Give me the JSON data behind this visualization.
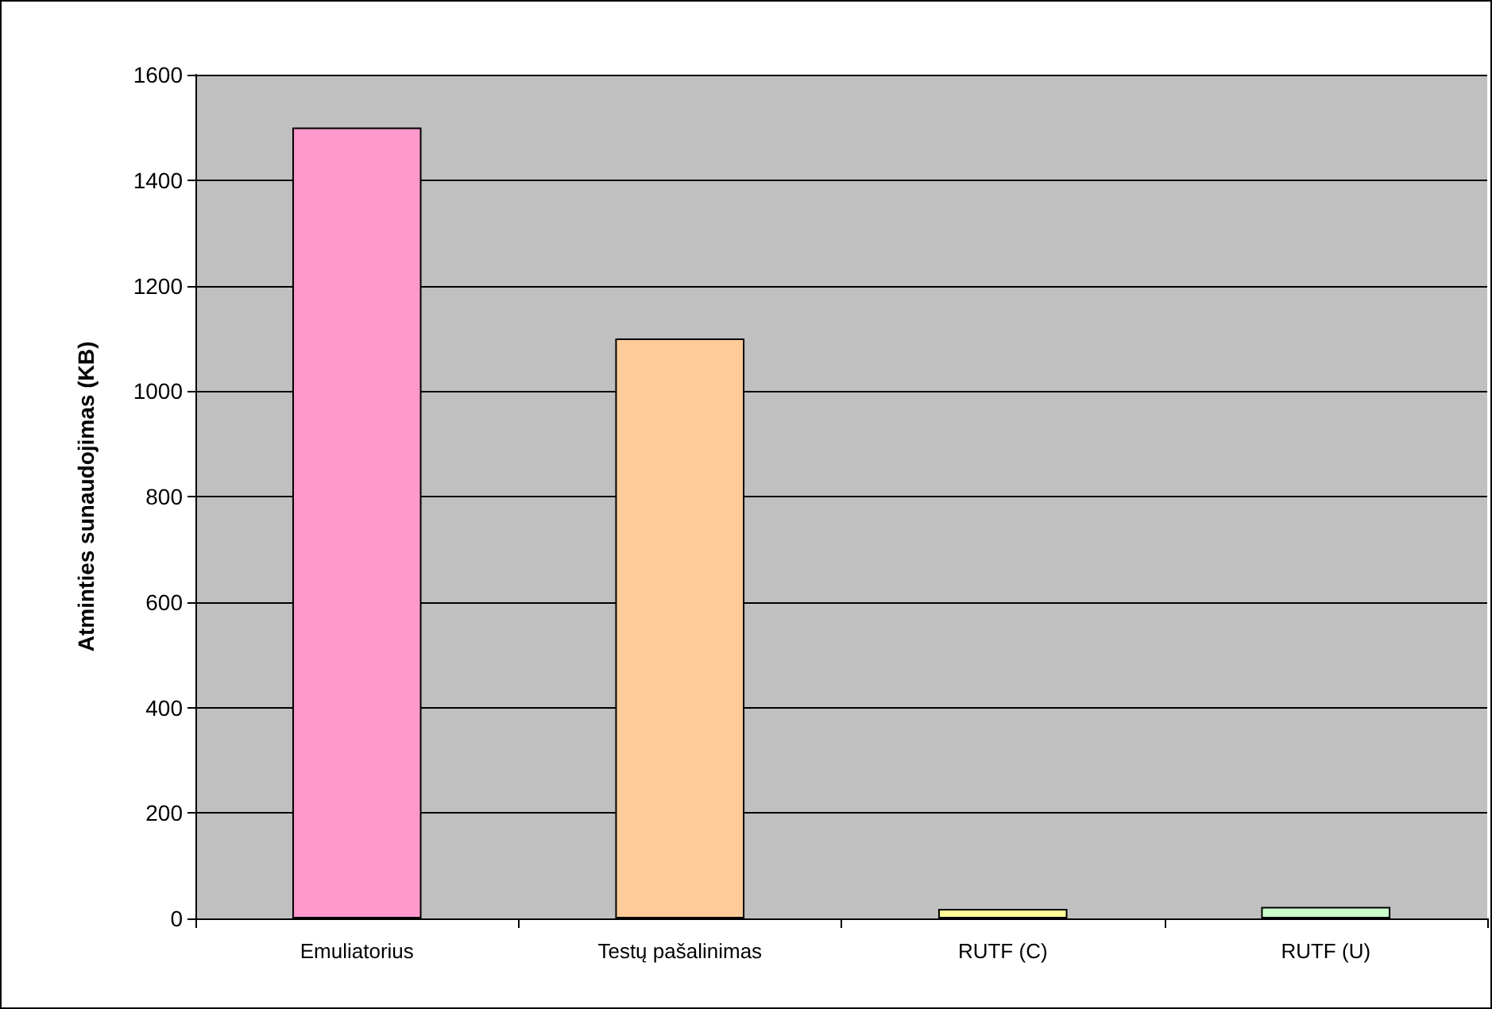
{
  "chart_data": {
    "type": "bar",
    "ylabel": "Atminties sunaudojimas (KB)",
    "categories": [
      "Emuliatorius",
      "Testų pašalinimas",
      "RUTF (C)",
      "RUTF (U)"
    ],
    "values": [
      1500,
      1100,
      18,
      22
    ],
    "colors": [
      "#ff99cc",
      "#ffcc99",
      "#ffff99",
      "#ccffcc"
    ],
    "ylim": [
      0,
      1600
    ],
    "yticks": [
      0,
      200,
      400,
      600,
      800,
      1000,
      1200,
      1400,
      1600
    ],
    "grid": "y"
  }
}
